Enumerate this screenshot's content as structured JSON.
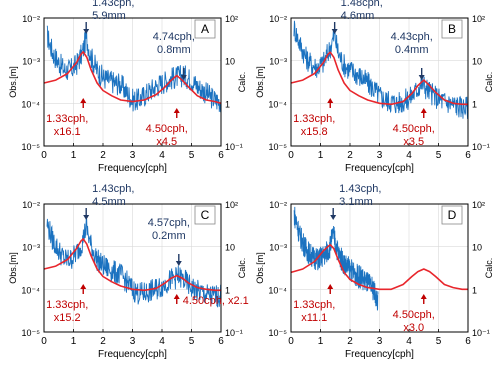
{
  "colors": {
    "observed": "#1b72c0",
    "calculated": "#e8262c",
    "annot_obs": "#1f3864",
    "annot_calc": "#c00000",
    "axis": "#000000",
    "grid": "#d9d9d9"
  },
  "chart_data": [
    {
      "panel_label": "A",
      "type": "line",
      "xlabel": "Frequency[cph]",
      "ylabel_left": "Obs.[m]",
      "ylabel_right": "Calc.",
      "xlim": [
        0,
        6
      ],
      "ylim_left": [
        1e-05,
        0.01
      ],
      "ylim_right": [
        0.1,
        100
      ],
      "scale": "log",
      "grid": true,
      "x_ticks": [
        "0",
        "1",
        "2",
        "3",
        "4",
        "5",
        "6"
      ],
      "y_ticks_left": [
        "10⁻²",
        "10⁻³",
        "10⁻⁴",
        "10⁻⁵"
      ],
      "y_ticks_right": [
        "10²",
        "10",
        "1",
        "10⁻¹"
      ],
      "series": [
        {
          "kind": "observed",
          "x": [
            0.1,
            0.3,
            0.5,
            0.7,
            0.9,
            1.1,
            1.3,
            1.43,
            1.6,
            1.8,
            2.0,
            2.2,
            2.4,
            2.6,
            2.8,
            3.0,
            3.2,
            3.4,
            3.6,
            3.8,
            4.0,
            4.2,
            4.4,
            4.74,
            5.0,
            5.2,
            5.4,
            5.6,
            5.8,
            6.0
          ],
          "y": [
            0.004,
            0.0015,
            0.0009,
            0.0006,
            0.0006,
            0.0008,
            0.0015,
            0.0035,
            0.0012,
            0.0006,
            0.0004,
            0.00035,
            0.0003,
            0.00028,
            0.00018,
            0.00012,
            0.00012,
            0.00015,
            0.0002,
            0.00025,
            0.0003,
            0.00035,
            0.0004,
            0.00045,
            0.00035,
            0.00025,
            0.0002,
            0.00015,
            0.00012,
            0.00011
          ]
        },
        {
          "kind": "calculated",
          "x": [
            0.0,
            0.4,
            0.8,
            1.1,
            1.25,
            1.33,
            1.45,
            1.6,
            1.8,
            2.0,
            2.3,
            2.6,
            3.0,
            3.4,
            3.8,
            4.1,
            4.3,
            4.5,
            4.7,
            4.9,
            5.2,
            5.5,
            5.8,
            6.0
          ],
          "y": [
            3.0,
            3.5,
            5.0,
            9.0,
            14.0,
            16.1,
            12.0,
            6.0,
            3.0,
            2.0,
            1.5,
            1.2,
            1.1,
            1.2,
            1.6,
            2.4,
            3.4,
            4.5,
            3.4,
            2.4,
            1.5,
            1.2,
            1.1,
            1.0
          ]
        }
      ],
      "annotations": [
        {
          "color": "obs",
          "x": 1.43,
          "lines": [
            "1.43cph,",
            "5.9mm"
          ]
        },
        {
          "color": "obs",
          "x": 4.74,
          "lines": [
            "4.74cph,",
            "0.8mm"
          ]
        },
        {
          "color": "calc",
          "x": 1.33,
          "lines": [
            "1.33cph,",
            "x16.1"
          ]
        },
        {
          "color": "calc",
          "x": 4.5,
          "lines": [
            "4.50cph,",
            "x4.5"
          ]
        }
      ]
    },
    {
      "panel_label": "B",
      "type": "line",
      "xlabel": "Frequency[cph]",
      "ylabel_left": "Obs.[m]",
      "ylabel_right": "Calc.",
      "xlim": [
        0,
        6
      ],
      "ylim_left": [
        1e-05,
        0.01
      ],
      "ylim_right": [
        0.1,
        100
      ],
      "scale": "log",
      "grid": true,
      "x_ticks": [
        "0",
        "1",
        "2",
        "3",
        "4",
        "5",
        "6"
      ],
      "y_ticks_left": [
        "10⁻²",
        "10⁻³",
        "10⁻⁴",
        "10⁻⁵"
      ],
      "y_ticks_right": [
        "10²",
        "10",
        "1",
        "10⁻¹"
      ],
      "series": [
        {
          "kind": "observed",
          "x": [
            0.1,
            0.3,
            0.5,
            0.7,
            0.9,
            1.1,
            1.3,
            1.48,
            1.6,
            1.8,
            2.0,
            2.2,
            2.4,
            2.6,
            2.8,
            3.0,
            3.2,
            3.4,
            3.6,
            3.8,
            4.0,
            4.2,
            4.43,
            4.6,
            4.8,
            5.0,
            5.2,
            5.4,
            5.6,
            5.8,
            6.0
          ],
          "y": [
            0.006,
            0.0025,
            0.0012,
            0.0008,
            0.0007,
            0.0009,
            0.0018,
            0.004,
            0.0015,
            0.0008,
            0.0006,
            0.0005,
            0.0004,
            0.0003,
            0.00022,
            0.00015,
            0.00012,
            0.00011,
            0.0001,
            0.00011,
            0.00013,
            0.00018,
            0.0003,
            0.00022,
            0.00016,
            0.00013,
            0.00011,
            0.0001,
            9e-05,
            8e-05,
            8e-05
          ]
        },
        {
          "kind": "calculated",
          "x": [
            0.0,
            0.4,
            0.8,
            1.1,
            1.25,
            1.33,
            1.45,
            1.6,
            1.8,
            2.0,
            2.3,
            2.6,
            3.0,
            3.4,
            3.8,
            4.1,
            4.3,
            4.5,
            4.7,
            4.9,
            5.2,
            5.5,
            5.8,
            6.0
          ],
          "y": [
            3.0,
            3.5,
            5.0,
            9.0,
            14.0,
            15.8,
            12.0,
            6.0,
            3.0,
            2.0,
            1.5,
            1.2,
            1.0,
            0.95,
            1.1,
            1.7,
            2.6,
            3.5,
            2.6,
            1.8,
            1.2,
            1.0,
            0.95,
            0.95
          ]
        }
      ],
      "annotations": [
        {
          "color": "obs",
          "x": 1.48,
          "lines": [
            "1.48cph,",
            "4.6mm"
          ]
        },
        {
          "color": "obs",
          "x": 4.43,
          "lines": [
            "4.43cph,",
            "0.4mm"
          ]
        },
        {
          "color": "calc",
          "x": 1.33,
          "lines": [
            "1.33cph,",
            "x15.8"
          ]
        },
        {
          "color": "calc",
          "x": 4.5,
          "lines": [
            "4.50cph,",
            "x3.5"
          ]
        }
      ]
    },
    {
      "panel_label": "C",
      "type": "line",
      "xlabel": "Frequency[cph]",
      "ylabel_left": "Obs.[m]",
      "ylabel_right": "Calc.",
      "xlim": [
        0,
        6
      ],
      "ylim_left": [
        1e-05,
        0.01
      ],
      "ylim_right": [
        0.1,
        100
      ],
      "scale": "log",
      "grid": true,
      "x_ticks": [
        "0",
        "1",
        "2",
        "3",
        "4",
        "5",
        "6"
      ],
      "y_ticks_left": [
        "10⁻²",
        "10⁻³",
        "10⁻⁴",
        "10⁻⁵"
      ],
      "y_ticks_right": [
        "10²",
        "10",
        "1",
        "10⁻¹"
      ],
      "series": [
        {
          "kind": "observed",
          "x": [
            0.1,
            0.3,
            0.5,
            0.7,
            0.9,
            1.1,
            1.3,
            1.43,
            1.6,
            1.8,
            2.0,
            2.2,
            2.4,
            2.6,
            2.8,
            3.0,
            3.2,
            3.4,
            3.6,
            3.8,
            4.0,
            4.2,
            4.4,
            4.57,
            4.8,
            5.0,
            5.2,
            5.4,
            5.6,
            5.8,
            6.0
          ],
          "y": [
            0.0035,
            0.0014,
            0.0008,
            0.0005,
            0.0005,
            0.0007,
            0.0013,
            0.003,
            0.001,
            0.0005,
            0.00035,
            0.0003,
            0.00025,
            0.00022,
            0.00015,
            0.0001,
            8e-05,
            8e-05,
            9e-05,
            0.0001,
            0.00012,
            0.00015,
            0.00018,
            0.0002,
            0.00015,
            0.00011,
            9e-05,
            8e-05,
            7e-05,
            7e-05,
            7e-05
          ]
        },
        {
          "kind": "calculated",
          "x": [
            0.0,
            0.4,
            0.8,
            1.1,
            1.25,
            1.33,
            1.45,
            1.6,
            1.8,
            2.0,
            2.3,
            2.6,
            3.0,
            3.4,
            3.8,
            4.1,
            4.3,
            4.5,
            4.7,
            4.9,
            5.2,
            5.5,
            5.8,
            6.0
          ],
          "y": [
            3.0,
            3.5,
            5.0,
            9.0,
            13.5,
            15.2,
            11.5,
            6.0,
            3.0,
            2.0,
            1.5,
            1.2,
            1.0,
            0.95,
            1.05,
            1.4,
            1.8,
            2.1,
            1.8,
            1.4,
            1.1,
            1.0,
            0.95,
            0.95
          ]
        }
      ],
      "annotations": [
        {
          "color": "obs",
          "x": 1.43,
          "lines": [
            "1.43cph,",
            "4.5mm"
          ]
        },
        {
          "color": "obs",
          "x": 4.57,
          "lines": [
            "4.57cph,",
            "0.2mm"
          ]
        },
        {
          "color": "calc",
          "x": 1.33,
          "lines": [
            "1.33cph,",
            "x15.2"
          ]
        },
        {
          "color": "calc",
          "x": 4.5,
          "lines": [
            "4.50cph, x2.1"
          ]
        }
      ]
    },
    {
      "panel_label": "D",
      "type": "line",
      "xlabel": "Frequency[cph]",
      "ylabel_left": "Obs.[m]",
      "ylabel_right": "Calc.",
      "xlim": [
        0,
        6
      ],
      "ylim_left": [
        1e-05,
        0.01
      ],
      "ylim_right": [
        0.1,
        100
      ],
      "scale": "log",
      "grid": true,
      "x_ticks": [
        "0",
        "1",
        "2",
        "3",
        "4",
        "5",
        "6"
      ],
      "y_ticks_left": [
        "10⁻²",
        "10⁻³",
        "10⁻⁴",
        "10⁻⁵"
      ],
      "y_ticks_right": [
        "10²",
        "10",
        "1",
        "10⁻¹"
      ],
      "series": [
        {
          "kind": "observed",
          "x": [
            0.1,
            0.3,
            0.5,
            0.7,
            0.9,
            1.1,
            1.3,
            1.43,
            1.6,
            1.8,
            2.0,
            2.2,
            2.4,
            2.6,
            2.8,
            2.95
          ],
          "y": [
            0.006,
            0.0018,
            0.0009,
            0.0006,
            0.0005,
            0.0006,
            0.0009,
            0.002,
            0.0007,
            0.0004,
            0.0003,
            0.00022,
            0.00018,
            0.00014,
            0.0001,
            5e-05
          ]
        },
        {
          "kind": "calculated",
          "x": [
            0.0,
            0.4,
            0.8,
            1.1,
            1.25,
            1.33,
            1.45,
            1.6,
            1.8,
            2.0,
            2.3,
            2.6,
            3.0,
            3.4,
            3.8,
            4.1,
            4.3,
            4.5,
            4.7,
            4.9,
            5.2,
            5.5,
            5.8,
            6.0
          ],
          "y": [
            2.5,
            3.0,
            4.5,
            8.0,
            10.0,
            11.1,
            9.0,
            5.0,
            2.5,
            1.7,
            1.3,
            1.1,
            1.0,
            1.0,
            1.3,
            2.0,
            2.6,
            3.0,
            2.6,
            2.0,
            1.3,
            1.1,
            1.0,
            1.0
          ]
        }
      ],
      "annotations": [
        {
          "color": "obs",
          "x": 1.43,
          "lines": [
            "1.43cph,",
            "3.1mm"
          ]
        },
        {
          "color": "calc",
          "x": 1.33,
          "lines": [
            "1.33cph,",
            "x11.1"
          ]
        },
        {
          "color": "calc",
          "x": 4.5,
          "lines": [
            "4.50cph,",
            "x3.0"
          ]
        }
      ]
    }
  ]
}
